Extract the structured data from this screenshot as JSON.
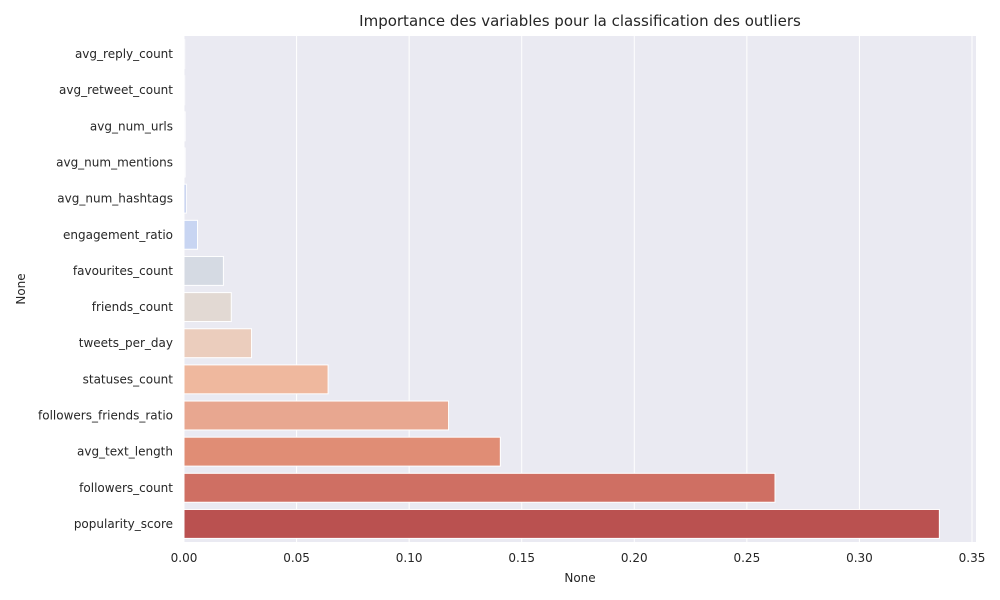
{
  "chart_data": {
    "type": "bar",
    "orientation": "horizontal",
    "title": "Importance des variables pour la classification des outliers",
    "xlabel": "None",
    "ylabel": "None",
    "xlim": [
      0,
      0.352
    ],
    "xticks": [
      0.0,
      0.05,
      0.1,
      0.15,
      0.2,
      0.25,
      0.3,
      0.35
    ],
    "xtick_labels": [
      "0.00",
      "0.05",
      "0.10",
      "0.15",
      "0.20",
      "0.25",
      "0.30",
      "0.35"
    ],
    "grid": true,
    "categories": [
      "avg_reply_count",
      "avg_retweet_count",
      "avg_num_urls",
      "avg_num_mentions",
      "avg_num_hashtags",
      "engagement_ratio",
      "favourites_count",
      "friends_count",
      "tweets_per_day",
      "statuses_count",
      "followers_friends_ratio",
      "avg_text_length",
      "followers_count",
      "popularity_score"
    ],
    "values": [
      0.0,
      0.0,
      0.0005,
      0.0005,
      0.001,
      0.006,
      0.0175,
      0.021,
      0.03,
      0.064,
      0.1175,
      0.1405,
      0.2625,
      0.3355
    ],
    "colors": [
      "#3b4cc0",
      "#5673e0",
      "#7093f3",
      "#8db0fe",
      "#aac7fd",
      "#c5d6f2",
      "#dddcdc",
      "#efcfbf",
      "#f6bfa6",
      "#f7ad90",
      "#f4987a",
      "#ea7b60",
      "#d95847",
      "#c0282f"
    ],
    "bar_fill_colors": [
      "#e5e6f5",
      "#e7e9f6",
      "#e9ecf5",
      "#eef0f6",
      "#bcc8ec",
      "#c8d5f2",
      "#d5dae3",
      "#e2d9d3",
      "#ebcdbd",
      "#efb89e",
      "#e8a790",
      "#e08d75",
      "#cf6f63",
      "#ba5150"
    ],
    "plot_background": "#eaeaf2",
    "grid_color": "#ffffff"
  }
}
